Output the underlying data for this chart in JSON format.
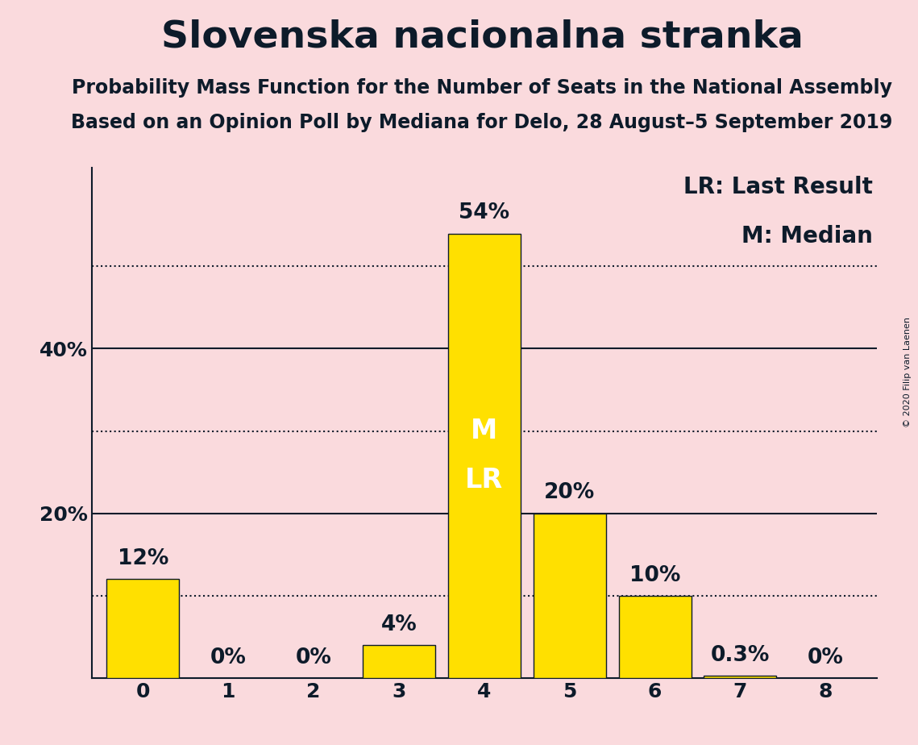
{
  "title": "Slovenska nacionalna stranka",
  "subtitle1": "Probability Mass Function for the Number of Seats in the National Assembly",
  "subtitle2": "Based on an Opinion Poll by Mediana for Delo, 28 August–5 September 2019",
  "copyright": "© 2020 Filip van Laenen",
  "legend_lr": "LR: Last Result",
  "legend_m": "M: Median",
  "categories": [
    0,
    1,
    2,
    3,
    4,
    5,
    6,
    7,
    8
  ],
  "values": [
    12,
    0,
    0,
    4,
    54,
    20,
    10,
    0.3,
    0
  ],
  "labels": [
    "12%",
    "0%",
    "0%",
    "4%",
    "54%",
    "20%",
    "10%",
    "0.3%",
    "0%"
  ],
  "bar_color": "#FFE000",
  "background_color": "#FADADD",
  "text_color": "#0d1b2a",
  "bar_edge_color": "#0d1b2a",
  "median_value": 4,
  "last_result_value": 4,
  "median_label": "M",
  "lr_label": "LR",
  "yticks": [
    20,
    40
  ],
  "ytick_labels": [
    "20%",
    "40%"
  ],
  "solid_lines": [
    20,
    40
  ],
  "dotted_lines": [
    10,
    30,
    50
  ],
  "ylim": [
    0,
    62
  ],
  "title_fontsize": 34,
  "subtitle_fontsize": 17,
  "label_fontsize": 17,
  "tick_fontsize": 18,
  "legend_fontsize": 20,
  "bar_label_fontsize": 19,
  "ml_fontsize": 24
}
